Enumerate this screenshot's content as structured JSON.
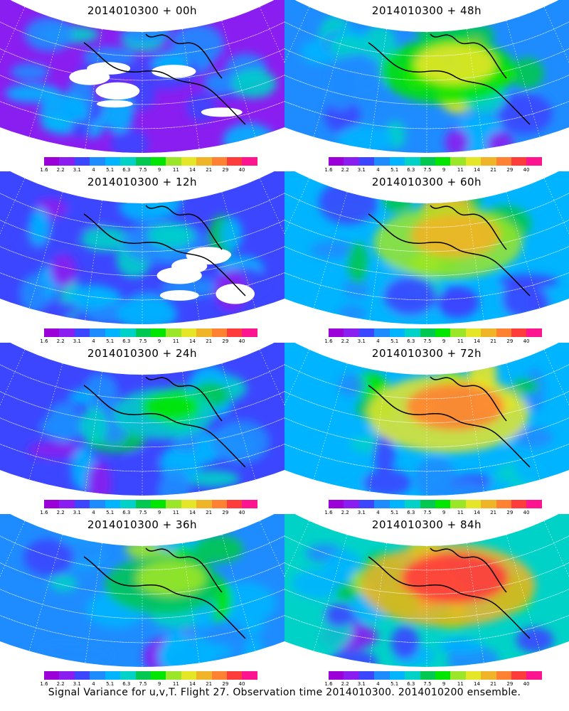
{
  "panels": [
    {
      "title": "2014010300 + 00h",
      "col": 0,
      "row": 0,
      "intensity": 0.1,
      "blanks": 1
    },
    {
      "title": "2014010300 + 48h",
      "col": 1,
      "row": 0,
      "intensity": 0.62,
      "blanks": 0
    },
    {
      "title": "2014010300 + 12h",
      "col": 0,
      "row": 1,
      "intensity": 0.22,
      "blanks": 1
    },
    {
      "title": "2014010300 + 60h",
      "col": 1,
      "row": 1,
      "intensity": 0.72,
      "blanks": 0
    },
    {
      "title": "2014010300 + 24h",
      "col": 0,
      "row": 2,
      "intensity": 0.35,
      "blanks": 0
    },
    {
      "title": "2014010300 + 72h",
      "col": 1,
      "row": 2,
      "intensity": 0.82,
      "blanks": 0
    },
    {
      "title": "2014010300 + 36h",
      "col": 0,
      "row": 3,
      "intensity": 0.48,
      "blanks": 0
    },
    {
      "title": "2014010300 + 84h",
      "col": 1,
      "row": 3,
      "intensity": 0.92,
      "blanks": 0
    }
  ],
  "colorbar": {
    "labels": [
      "1.6",
      "2.2",
      "3.1",
      "4",
      "5.1",
      "6.3",
      "7.5",
      "9",
      "11",
      "14",
      "21",
      "29",
      "40"
    ],
    "colors": [
      "#9c00d8",
      "#8a1ef0",
      "#3c46ff",
      "#1e8cff",
      "#00b4ff",
      "#00d2c8",
      "#00c850",
      "#00e600",
      "#9be628",
      "#e6e628",
      "#f0b428",
      "#ff8232",
      "#ff3c3c",
      "#ff1490"
    ]
  },
  "caption": "Signal Variance for u,v,T. Flight 27. Observation time 2014010300. 2014010200 ensemble."
}
